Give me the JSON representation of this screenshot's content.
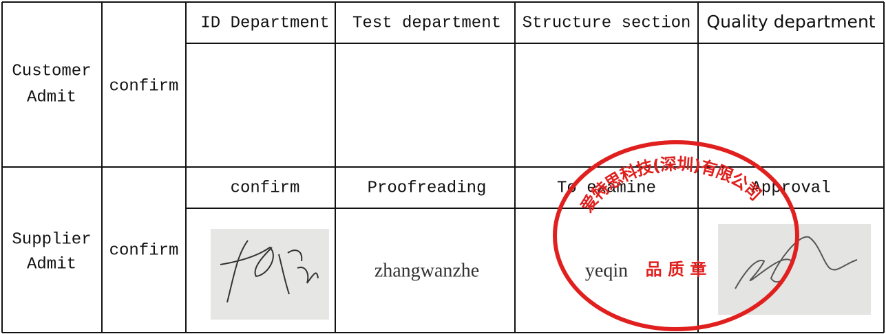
{
  "table": {
    "header": [
      "ID Department",
      "Test department",
      "Structure section",
      "Quality department"
    ],
    "customer": {
      "label": [
        "Customer",
        "Admit"
      ],
      "action": "confirm"
    },
    "supplier": {
      "label": [
        "Supplier",
        "Admit"
      ],
      "action": "confirm",
      "steps": [
        "confirm",
        "Proofreading",
        "To examine",
        "Approval"
      ],
      "signers": [
        "zhangwanzhe",
        "yeqin"
      ]
    }
  },
  "stamp": {
    "company": "爱特思科技(深圳)有限公司",
    "seal": "品 质 章"
  }
}
